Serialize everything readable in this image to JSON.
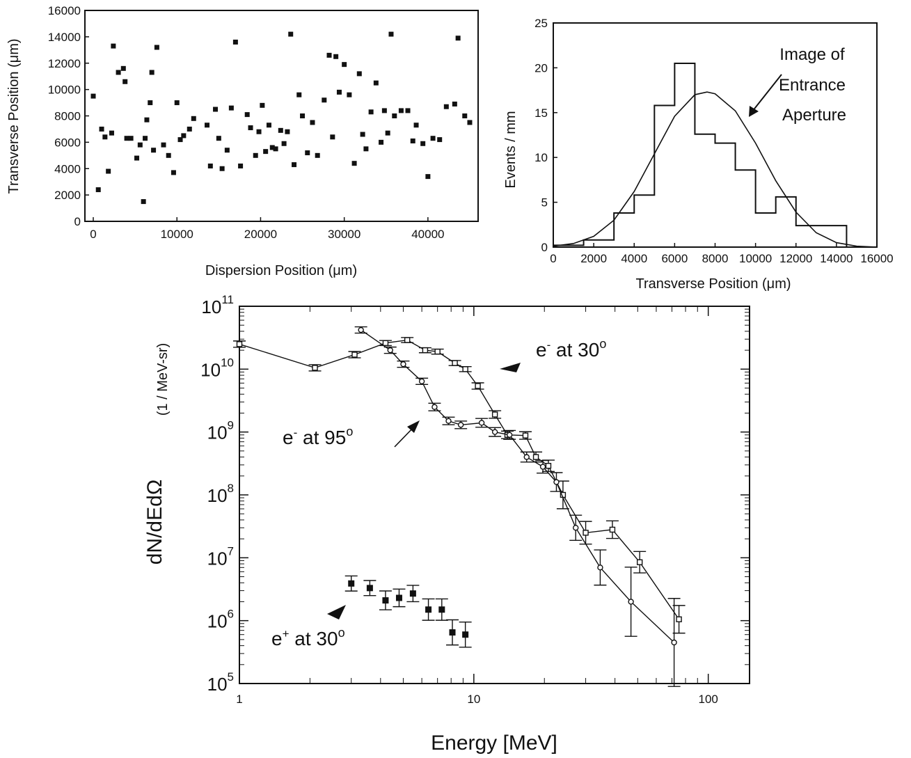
{
  "colors": {
    "ink": "#111111",
    "background": "#ffffff"
  },
  "chart_data": [
    {
      "type": "scatter",
      "xlabel": "Dispersion Position (μm)",
      "ylabel": "Transverse Position (μm)",
      "xlim": [
        -1000,
        46000
      ],
      "ylim": [
        0,
        16000
      ],
      "xticks": [
        "0",
        "10000",
        "20000",
        "30000",
        "40000"
      ],
      "yticks": [
        "0",
        "2000",
        "4000",
        "6000",
        "8000",
        "10000",
        "12000",
        "14000",
        "16000"
      ],
      "grid": false,
      "points": [
        [
          0,
          9500
        ],
        [
          600,
          2400
        ],
        [
          1000,
          7000
        ],
        [
          1400,
          6400
        ],
        [
          1800,
          3800
        ],
        [
          2200,
          6700
        ],
        [
          2400,
          13300
        ],
        [
          3000,
          11300
        ],
        [
          3600,
          11600
        ],
        [
          3800,
          10600
        ],
        [
          4000,
          6300
        ],
        [
          4500,
          6300
        ],
        [
          5200,
          4800
        ],
        [
          5600,
          5800
        ],
        [
          6000,
          1500
        ],
        [
          6200,
          6300
        ],
        [
          6400,
          7700
        ],
        [
          6800,
          9000
        ],
        [
          7000,
          11300
        ],
        [
          7200,
          5400
        ],
        [
          7600,
          13200
        ],
        [
          8400,
          5800
        ],
        [
          9000,
          5000
        ],
        [
          9600,
          3700
        ],
        [
          10000,
          9000
        ],
        [
          10400,
          6200
        ],
        [
          10800,
          6500
        ],
        [
          11500,
          7000
        ],
        [
          12000,
          7800
        ],
        [
          13600,
          7300
        ],
        [
          14000,
          4200
        ],
        [
          14600,
          8500
        ],
        [
          15000,
          6300
        ],
        [
          15400,
          4000
        ],
        [
          16000,
          5400
        ],
        [
          16500,
          8600
        ],
        [
          17000,
          13600
        ],
        [
          17600,
          4200
        ],
        [
          18400,
          8100
        ],
        [
          18800,
          7100
        ],
        [
          19400,
          5000
        ],
        [
          19800,
          6800
        ],
        [
          20200,
          8800
        ],
        [
          20600,
          5300
        ],
        [
          21000,
          7300
        ],
        [
          21400,
          5600
        ],
        [
          21800,
          5500
        ],
        [
          22400,
          6900
        ],
        [
          22800,
          5900
        ],
        [
          23200,
          6800
        ],
        [
          23600,
          14200
        ],
        [
          24000,
          4300
        ],
        [
          24600,
          9600
        ],
        [
          25000,
          8000
        ],
        [
          25600,
          5200
        ],
        [
          26200,
          7500
        ],
        [
          26800,
          5000
        ],
        [
          27600,
          9200
        ],
        [
          28200,
          12600
        ],
        [
          28600,
          6400
        ],
        [
          29000,
          12500
        ],
        [
          29400,
          9800
        ],
        [
          30000,
          11900
        ],
        [
          30600,
          9600
        ],
        [
          31200,
          4400
        ],
        [
          31800,
          11200
        ],
        [
          32200,
          6600
        ],
        [
          32600,
          5500
        ],
        [
          33200,
          8300
        ],
        [
          33800,
          10500
        ],
        [
          34400,
          6000
        ],
        [
          34800,
          8400
        ],
        [
          35200,
          6700
        ],
        [
          35600,
          14200
        ],
        [
          36000,
          8000
        ],
        [
          36800,
          8400
        ],
        [
          37600,
          8400
        ],
        [
          38200,
          6100
        ],
        [
          38600,
          7300
        ],
        [
          39400,
          5900
        ],
        [
          40000,
          3400
        ],
        [
          40600,
          6300
        ],
        [
          41400,
          6200
        ],
        [
          42200,
          8700
        ],
        [
          43200,
          8900
        ],
        [
          43600,
          13900
        ],
        [
          44400,
          8000
        ],
        [
          45000,
          7500
        ]
      ]
    },
    {
      "type": "histogram",
      "xlabel": "Transverse Position  (μm)",
      "ylabel": "Events / mm",
      "xlim": [
        0,
        16000
      ],
      "ylim": [
        0,
        25
      ],
      "xticks": [
        "0",
        "2000",
        "4000",
        "6000",
        "8000",
        "10000",
        "12000",
        "14000",
        "16000"
      ],
      "yticks": [
        "0",
        "5",
        "10",
        "15",
        "20",
        "25"
      ],
      "grid": false,
      "bin_edges": [
        0,
        1500,
        3000,
        4000,
        5000,
        6000,
        7000,
        8000,
        9000,
        10000,
        11000,
        12000,
        14500,
        16000
      ],
      "counts": [
        0.2,
        0.8,
        3.8,
        5.8,
        15.8,
        20.5,
        12.6,
        11.6,
        8.6,
        3.8,
        5.6,
        2.4,
        0.0
      ],
      "fit_curve": {
        "name": "Image of Entrance Aperture",
        "x": [
          0,
          1000,
          2000,
          3000,
          4000,
          5000,
          6000,
          7000,
          7600,
          8000,
          9000,
          10000,
          11000,
          12000,
          13000,
          14000,
          15000,
          16000
        ],
        "y": [
          0.1,
          0.4,
          1.2,
          3.0,
          6.2,
          10.4,
          14.6,
          17.0,
          17.3,
          17.1,
          15.2,
          11.6,
          7.4,
          3.9,
          1.6,
          0.5,
          0.1,
          0.0
        ]
      },
      "annotations": [
        "Image of",
        "Entrance",
        "Aperture"
      ]
    },
    {
      "type": "line",
      "xlabel": "Energy  [MeV]",
      "ylabel": "dN/dEdΩ",
      "ylabel_unit": "(1 / MeV-sr)",
      "xscale": "log",
      "yscale": "log",
      "xlim": [
        1,
        150
      ],
      "ylim": [
        100000.0,
        100000000000.0
      ],
      "xticks": [
        "1",
        "10",
        "100"
      ],
      "yticks": [
        {
          "base": "10",
          "exp": "5"
        },
        {
          "base": "10",
          "exp": "6"
        },
        {
          "base": "10",
          "exp": "7"
        },
        {
          "base": "10",
          "exp": "8"
        },
        {
          "base": "10",
          "exp": "9"
        },
        {
          "base": "10",
          "exp": "10"
        },
        {
          "base": "10",
          "exp": "11"
        }
      ],
      "grid": false,
      "series": [
        {
          "label_parts": {
            "base": "e",
            "sup": "-",
            "mid": " at 95",
            "deg": "o"
          },
          "marker": "open-square",
          "x": [
            1.0,
            2.1,
            3.1,
            4.2,
            5.2,
            6.2,
            7.0,
            8.3,
            9.2,
            10.4,
            12.3,
            13.9
          ],
          "y": [
            25000000000.0,
            10500000000.0,
            17000000000.0,
            26000000000.0,
            29000000000.0,
            20000000000.0,
            19000000000.0,
            12500000000.0,
            10000000000.0,
            5400000000.0,
            1900000000.0,
            900000000.0
          ],
          "err": [
            0.05,
            0.05,
            0.05,
            0.04,
            0.04,
            0.04,
            0.04,
            0.04,
            0.04,
            0.05,
            0.06,
            0.06
          ],
          "x_tail": [
            16.6,
            18.4,
            20.8,
            24.0,
            30.0,
            39.0,
            51.0,
            75.0
          ],
          "y_tail": [
            880000000.0,
            400000000.0,
            290000000.0,
            100000000.0,
            25000000.0,
            28000000.0,
            8500000.0,
            1050000.0
          ],
          "err_tail": [
            0.06,
            0.08,
            0.09,
            0.22,
            0.18,
            0.14,
            0.17,
            0.22
          ]
        },
        {
          "label_parts": {
            "base": "e",
            "sup": "-",
            "mid": " at 30",
            "deg": "o"
          },
          "marker": "open-circle",
          "x": [
            3.3,
            4.4,
            5.0,
            6.0,
            6.8,
            7.8,
            8.8,
            10.8,
            12.3,
            14.2,
            16.8,
            19.7,
            22.5,
            27.2,
            34.6,
            46.8,
            71.5
          ],
          "y": [
            42000000000.0,
            20000000000.0,
            12000000000.0,
            6400000000.0,
            2500000000.0,
            1500000000.0,
            1300000000.0,
            1400000000.0,
            1000000000.0,
            900000000.0,
            400000000.0,
            280000000.0,
            160000000.0,
            30000000.0,
            7000000.0,
            2000000.0,
            450000.0
          ],
          "err": [
            0.05,
            0.05,
            0.05,
            0.05,
            0.06,
            0.06,
            0.06,
            0.07,
            0.07,
            0.07,
            0.08,
            0.1,
            0.15,
            0.2,
            0.28,
            0.55,
            0.7
          ]
        },
        {
          "label_parts": {
            "base": "e",
            "sup": "+",
            "mid": " at 30",
            "deg": "o"
          },
          "marker": "filled-square",
          "x": [
            3.0,
            3.6,
            4.2,
            4.8,
            5.5,
            6.4,
            7.3,
            8.1,
            9.2
          ],
          "y": [
            3900000.0,
            3300000.0,
            2100000.0,
            2300000.0,
            2700000.0,
            1500000.0,
            1500000.0,
            650000.0,
            600000.0
          ],
          "err": [
            0.12,
            0.12,
            0.15,
            0.14,
            0.13,
            0.17,
            0.17,
            0.2,
            0.2
          ]
        }
      ]
    }
  ]
}
